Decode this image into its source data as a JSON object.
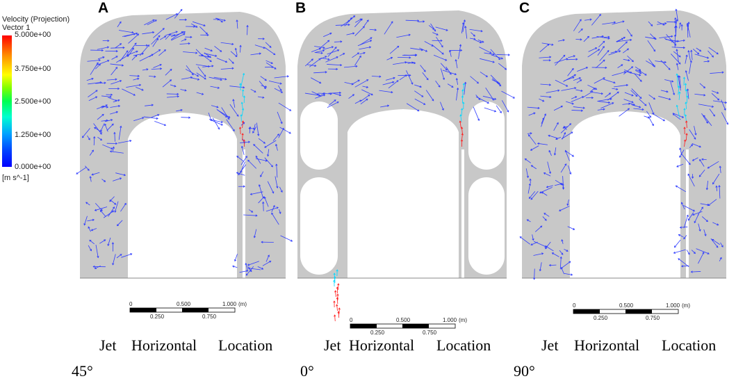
{
  "legend": {
    "title_line1": "Velocity (Projection)",
    "title_line2": "Vector 1",
    "ticks": [
      "5.000e+00",
      "3.750e+00",
      "2.500e+00",
      "1.250e+00",
      "0.000e+00"
    ],
    "unit": "[m s^-1]",
    "colormap": [
      "#ff0000",
      "#ffff00",
      "#00ff50",
      "#00a0ff",
      "#0000ff"
    ]
  },
  "panels": [
    {
      "letter": "A",
      "caption_words": [
        "Jet",
        "Horizontal",
        "Location"
      ],
      "angle": "45°",
      "scale": {
        "labels_top": [
          "0",
          "0.500",
          "1.000",
          "(m)"
        ],
        "labels_bottom": [
          "0.250",
          "0.750"
        ]
      }
    },
    {
      "letter": "B",
      "caption_words": [
        "Jet",
        "Horizontal",
        "Location"
      ],
      "angle": "0°",
      "scale": {
        "labels_top": [
          "0",
          "0.500",
          "1.000",
          "(m)"
        ],
        "labels_bottom": [
          "0.250",
          "0.750"
        ]
      }
    },
    {
      "letter": "C",
      "caption_words": [
        "Jet",
        "Horizontal",
        "Location"
      ],
      "angle": "90°",
      "scale": {
        "labels_top": [
          "0",
          "0.500",
          "1.000",
          "(m)"
        ],
        "labels_bottom": [
          "0.250",
          "0.750"
        ]
      }
    }
  ],
  "colors": {
    "domain_fill": "#c8c8c8",
    "vector_low": "#2e3cff",
    "vector_mid": "#00d8ff",
    "vector_high": "#ff1a1a"
  }
}
